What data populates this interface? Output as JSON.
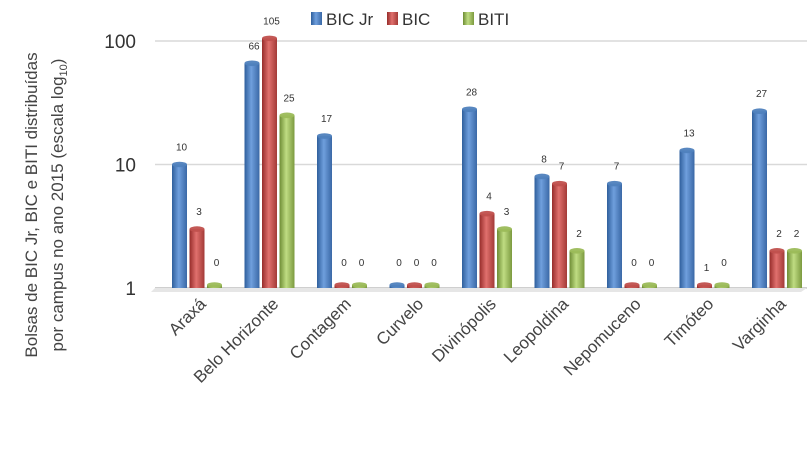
{
  "chart_data": {
    "type": "bar",
    "scale": "log10",
    "categories": [
      "Araxá",
      "Belo Horizonte",
      "Contagem",
      "Curvelo",
      "Divinópolis",
      "Leopoldina",
      "Nepomuceno",
      "Timóteo",
      "Varginha"
    ],
    "series": [
      {
        "name": "BIC Jr",
        "values": [
          10,
          66,
          17,
          0,
          28,
          8,
          7,
          13,
          27
        ],
        "color": "#4f81bd"
      },
      {
        "name": "BIC",
        "values": [
          3,
          105,
          0,
          0,
          4,
          7,
          0,
          1,
          2
        ],
        "color": "#c0504d"
      },
      {
        "name": "BITI",
        "values": [
          0,
          25,
          0,
          0,
          3,
          2,
          0,
          0,
          2
        ],
        "color": "#9bbb59"
      }
    ],
    "yticks": [
      "1",
      "10",
      "100"
    ],
    "ylim": [
      1,
      150
    ],
    "ylabel_line1": "Bolsas de BIC Jr, BIC e BITI distribuídas",
    "ylabel_line2_main": "por campus no ano 2015 (escala log",
    "ylabel_line2_sub": "10",
    "ylabel_line2_end": ")",
    "grid": true,
    "legend_position": "top-center"
  }
}
